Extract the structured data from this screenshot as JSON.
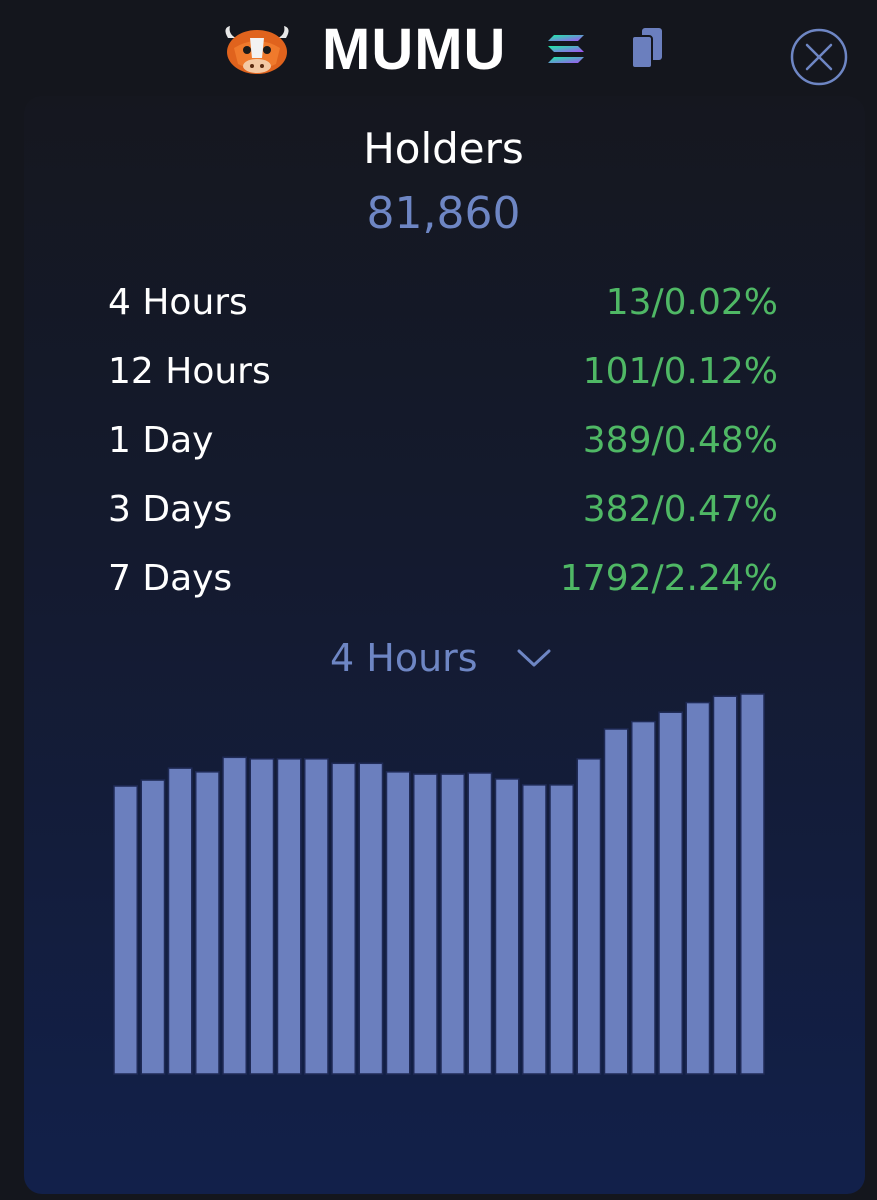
{
  "token": {
    "name": "MUMU",
    "logo_icon": "bull-mascot-logo",
    "chain_icon": "solana-icon",
    "copy_icon": "copy-icon",
    "close_icon": "close-circle-icon"
  },
  "holders": {
    "title": "Holders",
    "count": "81,860"
  },
  "stats": [
    {
      "label": "4 Hours",
      "value": "13/0.02%"
    },
    {
      "label": "12 Hours",
      "value": "101/0.12%"
    },
    {
      "label": "1 Day",
      "value": "389/0.48%"
    },
    {
      "label": "3 Days",
      "value": "382/0.47%"
    },
    {
      "label": "7 Days",
      "value": "1792/2.24%"
    }
  ],
  "period_selector": {
    "selected": "4 Hours"
  },
  "colors": {
    "accent": "#6e86c4",
    "positive": "#4fb865",
    "bar": "#6b7fbe",
    "bar_border": "#1f2a55"
  },
  "chart_data": {
    "type": "bar",
    "series": [
      {
        "values": [
          0.773,
          0.789,
          0.821,
          0.811,
          0.85,
          0.846,
          0.846,
          0.846,
          0.834,
          0.834,
          0.811,
          0.805,
          0.805,
          0.808,
          0.792,
          0.776,
          0.776,
          0.846,
          0.926,
          0.946,
          0.971,
          0.997,
          1.014,
          1.02
        ]
      }
    ],
    "ylim": [
      0,
      1.02
    ],
    "grid": false,
    "legend": "none"
  }
}
